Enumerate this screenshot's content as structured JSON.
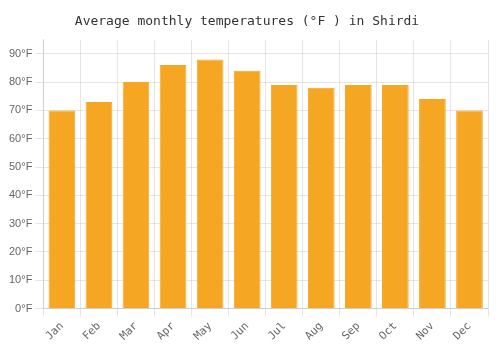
{
  "chart_data": {
    "type": "bar",
    "title": "Average monthly temperatures (°F ) in Shirdi",
    "categories": [
      "Jan",
      "Feb",
      "Mar",
      "Apr",
      "May",
      "Jun",
      "Jul",
      "Aug",
      "Sep",
      "Oct",
      "Nov",
      "Dec"
    ],
    "values": [
      70,
      73,
      80,
      86,
      88,
      84,
      79,
      78,
      79,
      79,
      74,
      70
    ],
    "color": "#F5A623",
    "ylim": [
      0,
      95
    ],
    "yticks": [
      {
        "value": 0,
        "label": "0°F"
      },
      {
        "value": 10,
        "label": "10°F"
      },
      {
        "value": 20,
        "label": "20°F"
      },
      {
        "value": 30,
        "label": "30°F"
      },
      {
        "value": 40,
        "label": "40°F"
      },
      {
        "value": 50,
        "label": "50°F"
      },
      {
        "value": 60,
        "label": "60°F"
      },
      {
        "value": 70,
        "label": "70°F"
      },
      {
        "value": 80,
        "label": "80°F"
      },
      {
        "value": 90,
        "label": "90°F"
      }
    ],
    "grid": true
  }
}
